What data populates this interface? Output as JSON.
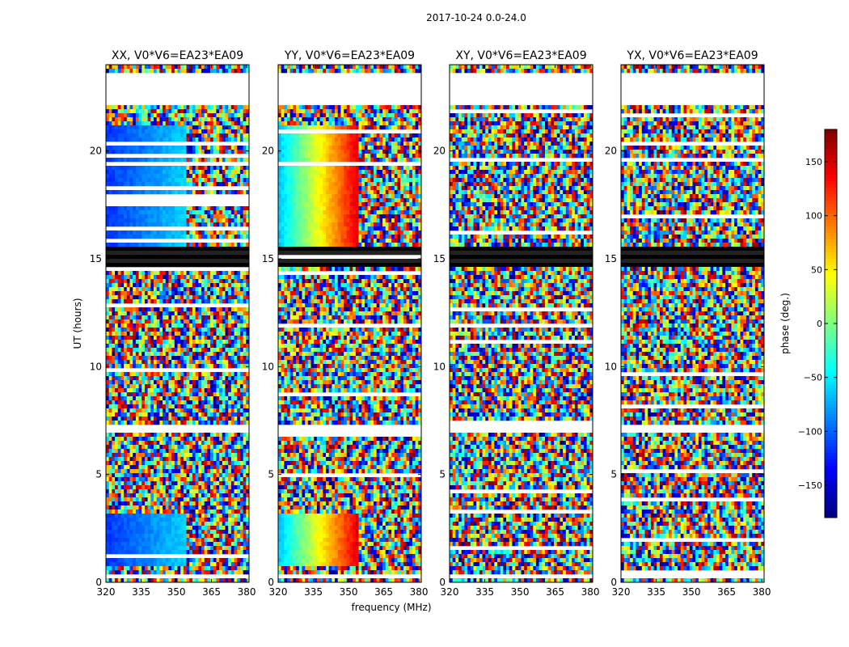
{
  "chart_data": {
    "type": "heatmap",
    "title": "2017-10-24 0.0-24.0",
    "xlabel": "frequency (MHz)",
    "ylabel": "UT (hours)",
    "xlim": [
      320,
      381
    ],
    "ylim": [
      0,
      24
    ],
    "xticks": [
      "320",
      "335",
      "350",
      "365",
      "380"
    ],
    "yticks": [
      "0",
      "5",
      "10",
      "15",
      "20"
    ],
    "panels": [
      {
        "name": "XX",
        "title": "XX, V0*V6=EA23*EA09"
      },
      {
        "name": "YY",
        "title": "YY, V0*V6=EA23*EA09"
      },
      {
        "name": "XY",
        "title": "XY, V0*V6=EA23*EA09"
      },
      {
        "name": "YX",
        "title": "YX, V0*V6=EA23*EA09"
      }
    ],
    "colorbar": {
      "label": "phase (deg.)",
      "range": [
        -180,
        180
      ],
      "ticks": [
        "150",
        "100",
        "50",
        "0",
        "−50",
        "−100",
        "−150"
      ],
      "colormap": "jet"
    },
    "blank_time_ranges_hours": [
      [
        22.2,
        23.6
      ],
      [
        6.9,
        7.3
      ],
      [
        0.15,
        0.35
      ]
    ],
    "dense_band_hours": [
      14.7,
      15.5
    ]
  }
}
